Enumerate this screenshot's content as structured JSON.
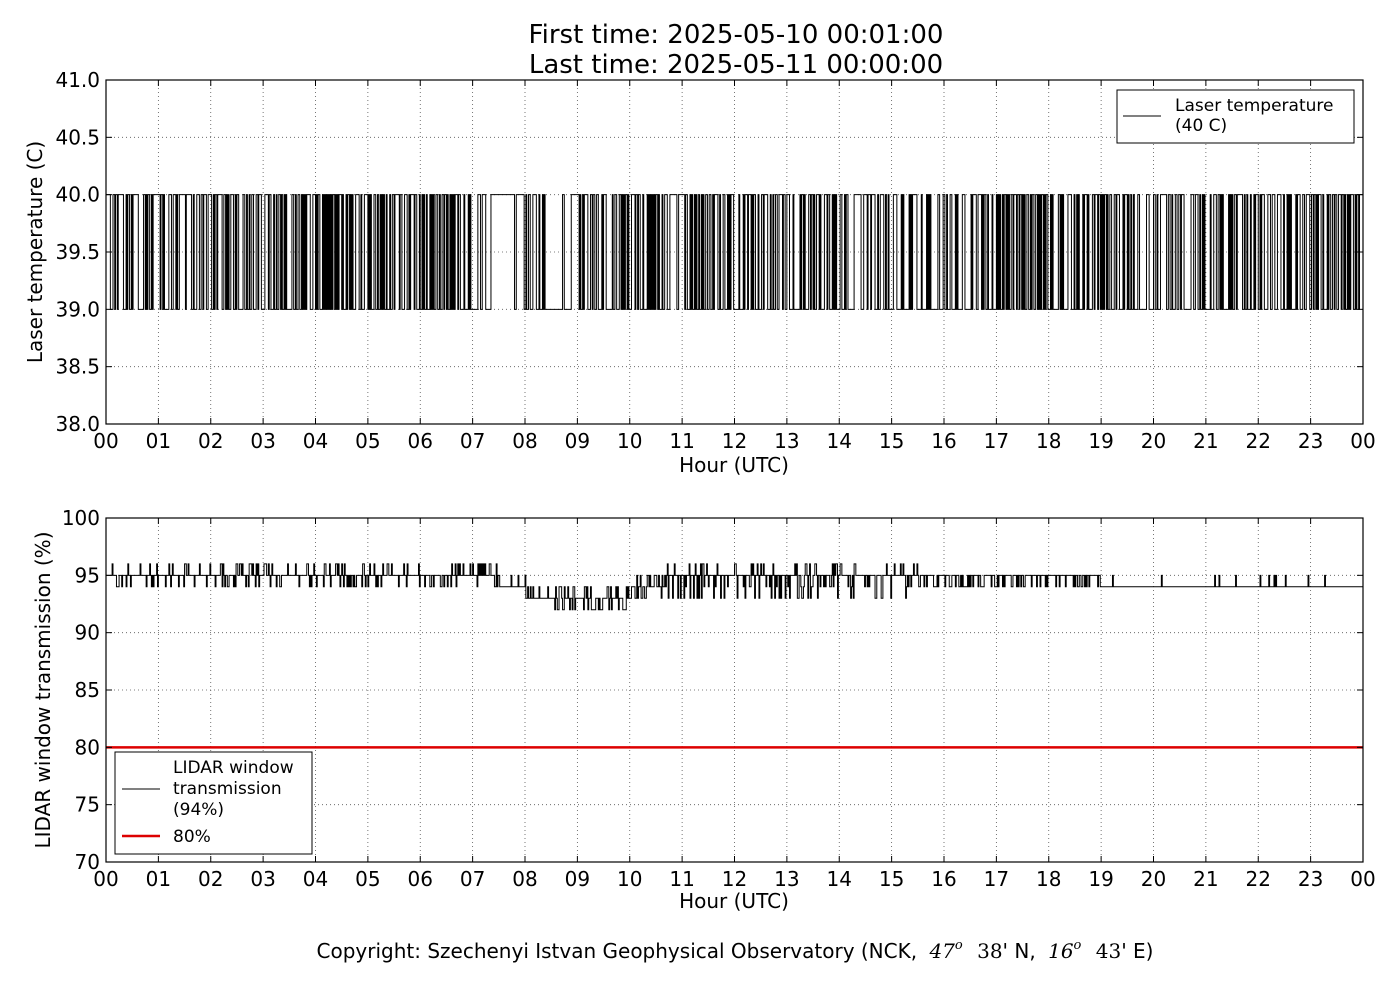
{
  "header": {
    "title_line1": "First time: 2025-05-10 00:01:00",
    "title_line2": "Last time: 2025-05-11 00:00:00"
  },
  "footer": {
    "copyright_prefix": "Copyright: Szechenyi Istvan Geophysical Observatory (NCK,",
    "lat_deg": "47",
    "lat_min": "38",
    "lat_suffix": "' N,",
    "lon_deg": "16",
    "lon_min": "43",
    "lon_suffix": "' E)",
    "degree_symbol": "o"
  },
  "colors": {
    "series_line": "#000000",
    "threshold_line": "#dd0000",
    "grid": "#555555"
  },
  "chart_data": [
    {
      "type": "line",
      "xlabel": "Hour (UTC)",
      "ylabel": "Laser temperature (C)",
      "xlim": [
        0,
        24
      ],
      "ylim": [
        38.0,
        41.0
      ],
      "x_ticks": [
        "00",
        "01",
        "02",
        "03",
        "04",
        "05",
        "06",
        "07",
        "08",
        "09",
        "10",
        "11",
        "12",
        "13",
        "14",
        "15",
        "16",
        "17",
        "18",
        "19",
        "20",
        "21",
        "22",
        "23",
        "00"
      ],
      "y_ticks": [
        "38.0",
        "38.5",
        "39.0",
        "39.5",
        "40.0",
        "40.5",
        "41.0"
      ],
      "grid": true,
      "legend_position": "top-right",
      "series": [
        {
          "name": "Laser temperature\n(40 C)",
          "legend_lines": [
            "Laser temperature",
            "(40 C)"
          ],
          "levels": [
            39.0,
            40.0
          ],
          "x_range": [
            0.0,
            24.0
          ],
          "segments": [
            {
              "x": [
                0.0,
                0.5
              ],
              "flip_rate": 0.5
            },
            {
              "x": [
                0.5,
                1.8
              ],
              "flip_rate": 0.35
            },
            {
              "x": [
                1.8,
                3.7
              ],
              "flip_rate": 0.45
            },
            {
              "x": [
                3.7,
                7.0
              ],
              "flip_rate": 0.6
            },
            {
              "x": [
                7.0,
                7.9
              ],
              "flip_rate": 0.2
            },
            {
              "x": [
                7.9,
                8.4
              ],
              "flip_rate": 0.55
            },
            {
              "x": [
                8.4,
                9.0
              ],
              "flip_rate": 0.15
            },
            {
              "x": [
                9.0,
                12.5
              ],
              "flip_rate": 0.55
            },
            {
              "x": [
                12.5,
                17.0
              ],
              "flip_rate": 0.4
            },
            {
              "x": [
                17.0,
                18.0
              ],
              "flip_rate": 0.7
            },
            {
              "x": [
                18.0,
                24.0
              ],
              "flip_rate": 0.5
            }
          ]
        }
      ]
    },
    {
      "type": "line",
      "xlabel": "Hour (UTC)",
      "ylabel": "LIDAR window transmission (%)",
      "xlim": [
        0,
        24
      ],
      "ylim": [
        70,
        100
      ],
      "x_ticks": [
        "00",
        "01",
        "02",
        "03",
        "04",
        "05",
        "06",
        "07",
        "08",
        "09",
        "10",
        "11",
        "12",
        "13",
        "14",
        "15",
        "16",
        "17",
        "18",
        "19",
        "20",
        "21",
        "22",
        "23",
        "00"
      ],
      "y_ticks": [
        "70",
        "75",
        "80",
        "85",
        "90",
        "95",
        "100"
      ],
      "grid": true,
      "legend_position": "bottom-left",
      "series": [
        {
          "name": "LIDAR window\ntransmission\n(94%)",
          "legend_lines": [
            "LIDAR window",
            "transmission",
            "(94%)"
          ],
          "color": "#000000",
          "x_range": [
            0.0,
            24.0
          ],
          "segments": [
            {
              "x": [
                0.0,
                7.5
              ],
              "base": 95,
              "low": 94,
              "high": 96,
              "noise": 0.45
            },
            {
              "x": [
                7.5,
                8.0
              ],
              "base": 94,
              "low": 94,
              "high": 95,
              "noise": 0.3
            },
            {
              "x": [
                8.0,
                8.5
              ],
              "base": 93,
              "low": 93,
              "high": 94,
              "noise": 0.45
            },
            {
              "x": [
                8.5,
                10.0
              ],
              "base": 93,
              "low": 92,
              "high": 94,
              "noise": 0.6
            },
            {
              "x": [
                10.0,
                10.7
              ],
              "base": 94,
              "low": 93,
              "high": 95,
              "noise": 0.55
            },
            {
              "x": [
                10.7,
                15.5
              ],
              "base": 95,
              "low": 93,
              "high": 96,
              "noise": 0.5
            },
            {
              "x": [
                15.5,
                19.0
              ],
              "base": 95,
              "low": 94,
              "high": 95,
              "noise": 0.4
            },
            {
              "x": [
                19.0,
                20.2
              ],
              "base": 94,
              "low": 94,
              "high": 95,
              "noise": 0.15
            },
            {
              "x": [
                20.2,
                24.0
              ],
              "base": 94,
              "low": 94,
              "high": 95,
              "noise": 0.08
            }
          ]
        },
        {
          "name": "80%",
          "legend_lines": [
            "80%"
          ],
          "color": "#dd0000",
          "x": [
            0,
            24
          ],
          "y": [
            80,
            80
          ]
        }
      ]
    }
  ]
}
